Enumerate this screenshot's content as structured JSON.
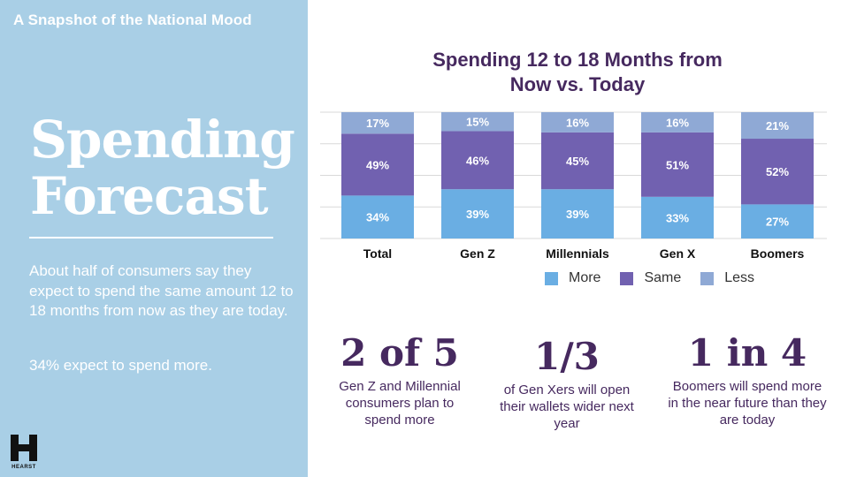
{
  "left": {
    "eyebrow": "A Snapshot of the National Mood",
    "title_line1": "Spending",
    "title_line2": "Forecast",
    "body": "About half of consumers say they expect to spend the same amount 12 to 18 months from now as they are today.",
    "body2": "34% expect to spend more.",
    "logo_text": "HEARST"
  },
  "colors": {
    "more": "#6aaee3",
    "same": "#7161b0",
    "less": "#8fa9d5",
    "title": "#46295f",
    "panel": "#a9cfe6"
  },
  "chart_data": {
    "type": "bar",
    "stacked": true,
    "title": "Spending 12 to 18 Months from Now vs. Today",
    "categories": [
      "Total",
      "Gen Z",
      "Millennials",
      "Gen X",
      "Boomers"
    ],
    "series": [
      {
        "name": "More",
        "values": [
          34,
          39,
          39,
          33,
          27
        ]
      },
      {
        "name": "Same",
        "values": [
          49,
          46,
          45,
          51,
          52
        ]
      },
      {
        "name": "Less",
        "values": [
          17,
          15,
          16,
          16,
          21
        ]
      }
    ],
    "ylim": [
      0,
      100
    ],
    "value_suffix": "%"
  },
  "legend": {
    "more": "More",
    "same": "Same",
    "less": "Less"
  },
  "stats": [
    {
      "num": "2 of 5",
      "desc": "Gen Z and Millennial consumers plan to spend more"
    },
    {
      "num": "1/3",
      "desc": "of Gen Xers will open their wallets wider next year"
    },
    {
      "num": "1 in 4",
      "desc": "Boomers will spend more in the near future than they are today"
    }
  ]
}
